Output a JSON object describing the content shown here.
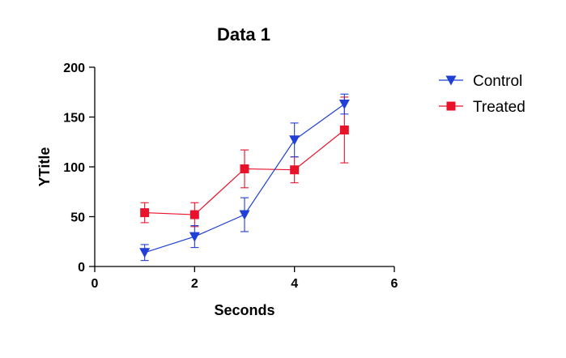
{
  "chart_data": {
    "type": "line",
    "title": "Data 1",
    "xlabel": "Seconds",
    "ylabel": "YTitle",
    "xlim": [
      0,
      6
    ],
    "ylim": [
      0,
      200
    ],
    "xticks": [
      0,
      2,
      4,
      6
    ],
    "yticks": [
      0,
      50,
      100,
      150,
      200
    ],
    "grid": false,
    "legend_position": "top-right",
    "series": [
      {
        "name": "Control",
        "color": "#1f3fd6",
        "marker": "triangle-down",
        "x": [
          1,
          2,
          3,
          4,
          5
        ],
        "values": [
          14,
          30,
          52,
          127,
          163
        ],
        "error": [
          8,
          11,
          17,
          17,
          10
        ]
      },
      {
        "name": "Treated",
        "color": "#e8132b",
        "marker": "square",
        "x": [
          1,
          2,
          3,
          4,
          5
        ],
        "values": [
          54,
          52,
          98,
          97,
          137
        ],
        "error": [
          10,
          12,
          19,
          13,
          33
        ]
      }
    ]
  }
}
